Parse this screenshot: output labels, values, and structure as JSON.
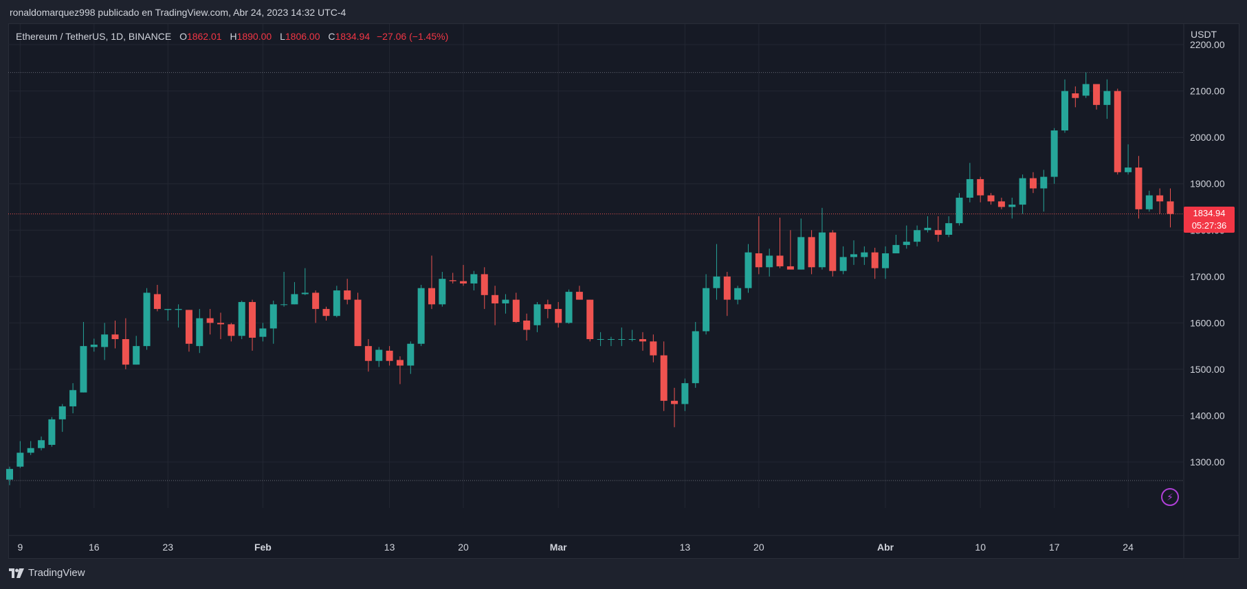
{
  "header": {
    "caption": "ronaldomarquez998 publicado en TradingView.com, Abr 24, 2023 14:32 UTC-4"
  },
  "legend": {
    "symbol": "Ethereum / TetherUS, 1D, BINANCE",
    "open_label": "O",
    "open": "1862.01",
    "high_label": "H",
    "high": "1890.00",
    "low_label": "L",
    "low": "1806.00",
    "close_label": "C",
    "close": "1834.94",
    "change": "−27.06 (−1.45%)"
  },
  "price_axis": {
    "unit": "USDT"
  },
  "last_price": {
    "price": "1834.94",
    "countdown": "05:27:36"
  },
  "footer": {
    "brand": "TradingView",
    "logo_icon": "tradingview-logo-icon"
  },
  "alert_icon": "lightning-icon",
  "colors": {
    "up": "#26a69a",
    "down": "#ef5350",
    "background": "#161a25",
    "grid": "#232733",
    "accent": "#f23645"
  },
  "chart_data": {
    "type": "candlestick",
    "symbol": "ETH/USDT",
    "interval": "1D",
    "y_ticks": [
      1300,
      1400,
      1500,
      1600,
      1700,
      1800,
      1900,
      2000,
      2100,
      2200
    ],
    "y_tick_labels": [
      "1300.00",
      "1400.00",
      "1500.00",
      "1600.00",
      "1700.00",
      "1800.00",
      "1900.00",
      "2000.00",
      "2100.00",
      "2200.00"
    ],
    "ylim": [
      1190,
      2205
    ],
    "x_ticks": [
      {
        "label": "9",
        "index": 1,
        "bold": false
      },
      {
        "label": "16",
        "index": 8,
        "bold": false
      },
      {
        "label": "23",
        "index": 15,
        "bold": false
      },
      {
        "label": "Feb",
        "index": 24,
        "bold": true
      },
      {
        "label": "13",
        "index": 36,
        "bold": false
      },
      {
        "label": "20",
        "index": 43,
        "bold": false
      },
      {
        "label": "Mar",
        "index": 52,
        "bold": true
      },
      {
        "label": "13",
        "index": 64,
        "bold": false
      },
      {
        "label": "20",
        "index": 71,
        "bold": false
      },
      {
        "label": "Abr",
        "index": 83,
        "bold": true
      },
      {
        "label": "10",
        "index": 92,
        "bold": false
      },
      {
        "label": "17",
        "index": 99,
        "bold": false
      },
      {
        "label": "24",
        "index": 106,
        "bold": false
      }
    ],
    "reference_lines": [
      2140,
      1260
    ],
    "last_price": 1834.94,
    "candles": [
      [
        1262,
        1285,
        1250,
        1290
      ],
      [
        1290,
        1320,
        1287,
        1345
      ],
      [
        1320,
        1330,
        1315,
        1345
      ],
      [
        1330,
        1347,
        1325,
        1355
      ],
      [
        1337,
        1392,
        1333,
        1397
      ],
      [
        1392,
        1420,
        1365,
        1425
      ],
      [
        1420,
        1455,
        1405,
        1470
      ],
      [
        1450,
        1550,
        1450,
        1602
      ],
      [
        1548,
        1553,
        1538,
        1566
      ],
      [
        1548,
        1575,
        1520,
        1600
      ],
      [
        1575,
        1565,
        1545,
        1605
      ],
      [
        1565,
        1510,
        1500,
        1610
      ],
      [
        1510,
        1550,
        1510,
        1572
      ],
      [
        1550,
        1665,
        1542,
        1675
      ],
      [
        1662,
        1630,
        1625,
        1682
      ],
      [
        1628,
        1630,
        1605,
        1630
      ],
      [
        1628,
        1630,
        1590,
        1640
      ],
      [
        1628,
        1555,
        1538,
        1628
      ],
      [
        1550,
        1610,
        1535,
        1630
      ],
      [
        1610,
        1600,
        1575,
        1630
      ],
      [
        1600,
        1597,
        1565,
        1622
      ],
      [
        1597,
        1572,
        1560,
        1600
      ],
      [
        1572,
        1645,
        1565,
        1648
      ],
      [
        1645,
        1568,
        1540,
        1650
      ],
      [
        1570,
        1588,
        1560,
        1600
      ],
      [
        1588,
        1640,
        1555,
        1648
      ],
      [
        1640,
        1640,
        1635,
        1710
      ],
      [
        1640,
        1662,
        1640,
        1688
      ],
      [
        1662,
        1665,
        1660,
        1718
      ],
      [
        1665,
        1630,
        1600,
        1670
      ],
      [
        1630,
        1615,
        1605,
        1635
      ],
      [
        1615,
        1670,
        1612,
        1680
      ],
      [
        1670,
        1650,
        1640,
        1695
      ],
      [
        1650,
        1550,
        1550,
        1665
      ],
      [
        1550,
        1518,
        1495,
        1565
      ],
      [
        1518,
        1542,
        1505,
        1548
      ],
      [
        1540,
        1518,
        1508,
        1550
      ],
      [
        1520,
        1508,
        1468,
        1528
      ],
      [
        1508,
        1555,
        1490,
        1560
      ],
      [
        1555,
        1675,
        1550,
        1682
      ],
      [
        1675,
        1640,
        1630,
        1745
      ],
      [
        1640,
        1695,
        1635,
        1710
      ],
      [
        1692,
        1690,
        1685,
        1708
      ],
      [
        1690,
        1685,
        1680,
        1725
      ],
      [
        1685,
        1705,
        1670,
        1712
      ],
      [
        1705,
        1660,
        1630,
        1720
      ],
      [
        1660,
        1642,
        1595,
        1680
      ],
      [
        1642,
        1650,
        1620,
        1662
      ],
      [
        1650,
        1602,
        1600,
        1665
      ],
      [
        1605,
        1585,
        1562,
        1620
      ],
      [
        1595,
        1640,
        1580,
        1645
      ],
      [
        1640,
        1630,
        1610,
        1650
      ],
      [
        1630,
        1600,
        1590,
        1645
      ],
      [
        1600,
        1667,
        1598,
        1672
      ],
      [
        1667,
        1650,
        1650,
        1680
      ],
      [
        1650,
        1565,
        1560,
        1650
      ],
      [
        1565,
        1565,
        1550,
        1580
      ],
      [
        1565,
        1565,
        1550,
        1570
      ],
      [
        1565,
        1565,
        1550,
        1590
      ],
      [
        1565,
        1565,
        1560,
        1585
      ],
      [
        1565,
        1560,
        1540,
        1580
      ],
      [
        1560,
        1530,
        1515,
        1575
      ],
      [
        1530,
        1432,
        1410,
        1560
      ],
      [
        1432,
        1425,
        1375,
        1460
      ],
      [
        1425,
        1470,
        1410,
        1480
      ],
      [
        1470,
        1582,
        1460,
        1602
      ],
      [
        1582,
        1675,
        1575,
        1705
      ],
      [
        1675,
        1700,
        1650,
        1770
      ],
      [
        1700,
        1650,
        1615,
        1710
      ],
      [
        1650,
        1675,
        1640,
        1680
      ],
      [
        1675,
        1752,
        1665,
        1770
      ],
      [
        1750,
        1720,
        1705,
        1830
      ],
      [
        1720,
        1745,
        1700,
        1760
      ],
      [
        1745,
        1722,
        1718,
        1827
      ],
      [
        1722,
        1715,
        1720,
        1800
      ],
      [
        1715,
        1785,
        1715,
        1825
      ],
      [
        1785,
        1720,
        1705,
        1800
      ],
      [
        1720,
        1795,
        1715,
        1848
      ],
      [
        1795,
        1712,
        1700,
        1800
      ],
      [
        1712,
        1742,
        1705,
        1765
      ],
      [
        1742,
        1748,
        1725,
        1778
      ],
      [
        1742,
        1752,
        1725,
        1765
      ],
      [
        1752,
        1718,
        1695,
        1762
      ],
      [
        1718,
        1750,
        1695,
        1765
      ],
      [
        1750,
        1768,
        1752,
        1790
      ],
      [
        1768,
        1775,
        1760,
        1810
      ],
      [
        1775,
        1800,
        1765,
        1810
      ],
      [
        1800,
        1805,
        1795,
        1830
      ],
      [
        1800,
        1790,
        1775,
        1830
      ],
      [
        1790,
        1815,
        1785,
        1830
      ],
      [
        1815,
        1870,
        1810,
        1880
      ],
      [
        1870,
        1910,
        1860,
        1945
      ],
      [
        1910,
        1875,
        1860,
        1915
      ],
      [
        1875,
        1862,
        1855,
        1880
      ],
      [
        1862,
        1850,
        1845,
        1870
      ],
      [
        1850,
        1855,
        1825,
        1870
      ],
      [
        1855,
        1912,
        1835,
        1920
      ],
      [
        1912,
        1890,
        1880,
        1925
      ],
      [
        1890,
        1915,
        1840,
        1930
      ],
      [
        1915,
        2015,
        1900,
        2020
      ],
      [
        2015,
        2100,
        2010,
        2125
      ],
      [
        2095,
        2085,
        2065,
        2110
      ],
      [
        2090,
        2115,
        2085,
        2140
      ],
      [
        2115,
        2070,
        2060,
        2115
      ],
      [
        2070,
        2100,
        2040,
        2125
      ],
      [
        2100,
        1925,
        1920,
        2105
      ],
      [
        1925,
        1935,
        1920,
        1985
      ],
      [
        1935,
        1845,
        1825,
        1960
      ],
      [
        1845,
        1875,
        1840,
        1885
      ],
      [
        1875,
        1862,
        1835,
        1890
      ],
      [
        1862,
        1835,
        1806,
        1890
      ]
    ]
  }
}
